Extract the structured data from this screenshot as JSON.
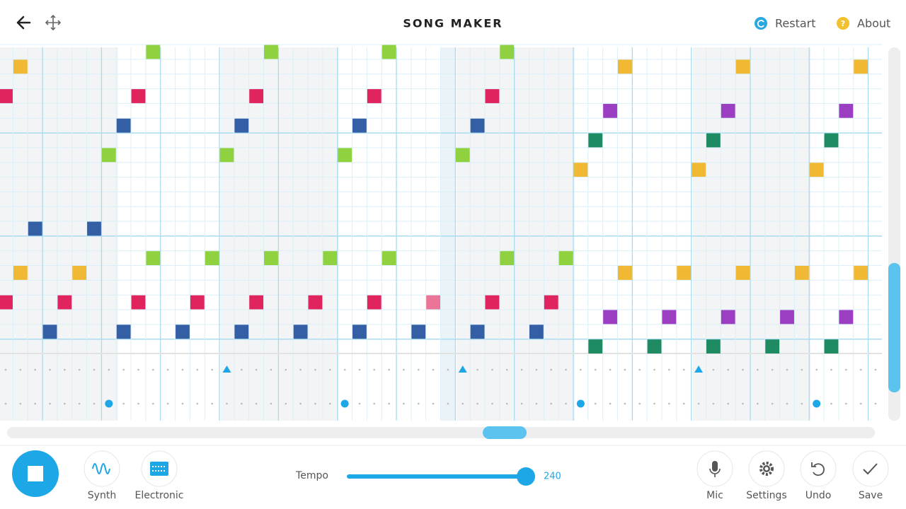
{
  "header": {
    "title": "SONG MAKER",
    "restart": "Restart",
    "about": "About"
  },
  "toolbar": {
    "instrument": "Synth",
    "percussion": "Electronic",
    "tempo_label": "Tempo",
    "tempo": 240,
    "mic": "Mic",
    "settings": "Settings",
    "undo": "Undo",
    "save": "Save"
  }
}
